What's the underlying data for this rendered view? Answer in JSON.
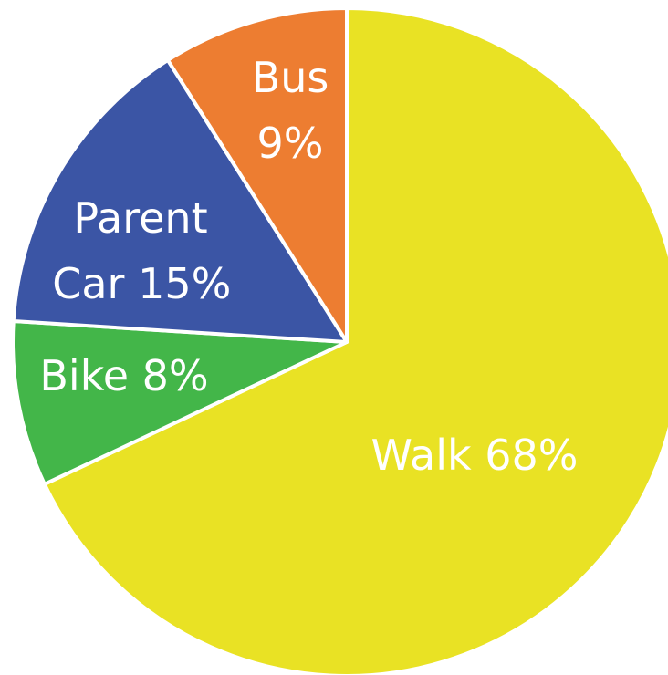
{
  "chart_data": {
    "type": "pie",
    "categories": [
      "Walk",
      "Bike",
      "Parent Car",
      "Bus"
    ],
    "values": [
      68,
      8,
      15,
      9
    ],
    "value_labels": [
      "68%",
      "8%",
      "15%",
      "9%"
    ],
    "colors": [
      "#e9e224",
      "#43b649",
      "#3b55a5",
      "#ed7d31"
    ],
    "start": "top",
    "direction": "clockwise"
  }
}
